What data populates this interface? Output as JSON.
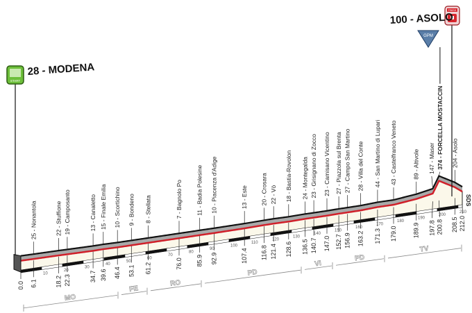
{
  "chart_data": {
    "type": "area",
    "title": "",
    "xlabel": "",
    "ylabel": "",
    "start": {
      "label": "28 - MODENA",
      "icon_text": "START"
    },
    "finish": {
      "label": "100 - ASOLO",
      "icon_text": "FINISH"
    },
    "gpm": {
      "label": "GPM"
    },
    "sds_label": "SDS",
    "x_unit": "km",
    "xlim": [
      0,
      212
    ],
    "km_ticks": [
      10,
      20,
      30,
      40,
      50,
      60,
      70,
      80,
      90,
      100,
      110,
      120,
      130,
      140,
      150,
      160,
      170,
      180,
      190,
      200,
      210
    ],
    "points": [
      {
        "km": "0.0",
        "alt": 28,
        "name": ""
      },
      {
        "km": "6.1",
        "alt": 25,
        "name": "25 - Nonantola"
      },
      {
        "km": "18.2",
        "alt": 22,
        "name": "22 - Stuffione"
      },
      {
        "km": "22.3",
        "alt": 19,
        "name": "19 - Camposanto"
      },
      {
        "km": "34.7",
        "alt": 13,
        "name": "13 - Canaletto"
      },
      {
        "km": "39.6",
        "alt": 15,
        "name": "15 - Finale Emilia"
      },
      {
        "km": "46.4",
        "alt": 10,
        "name": "10 - Scortichino"
      },
      {
        "km": "53.1",
        "alt": 9,
        "name": "9 - Bondeno"
      },
      {
        "km": "61.2",
        "alt": 8,
        "name": "8 - Stellata"
      },
      {
        "km": "76.0",
        "alt": 7,
        "name": "7 - Bagnolo Po"
      },
      {
        "km": "85.9",
        "alt": 11,
        "name": "11 - Badia Polesine"
      },
      {
        "km": "92.9",
        "alt": 10,
        "name": "10 - Piacenza d'Adige"
      },
      {
        "km": "107.4",
        "alt": 13,
        "name": "13 - Este"
      },
      {
        "km": "116.8",
        "alt": 20,
        "name": "20 - Crosara"
      },
      {
        "km": "121.4",
        "alt": 22,
        "name": "22 - Vò"
      },
      {
        "km": "128.6",
        "alt": 18,
        "name": "18 - Bastia-Rovolon"
      },
      {
        "km": "136.5",
        "alt": 24,
        "name": "24 - Montegalda"
      },
      {
        "km": "140.7",
        "alt": 23,
        "name": "23 - Grisignano di Zocco"
      },
      {
        "km": "147.0",
        "alt": 23,
        "name": "23 - Camisano Vicentino"
      },
      {
        "km": "152.7",
        "alt": 27,
        "name": "27 - Piazzola sul Brenta"
      },
      {
        "km": "156.9",
        "alt": 27,
        "name": "27 - Campo San Martino"
      },
      {
        "km": "163.2",
        "alt": 28,
        "name": "28 - Villa del Conte"
      },
      {
        "km": "171.3",
        "alt": 44,
        "name": "44 - San Martino di Lupari"
      },
      {
        "km": "179.0",
        "alt": 43,
        "name": "43 - Castelfranco Veneto"
      },
      {
        "km": "189.9",
        "alt": 89,
        "name": "89 - Altivole"
      },
      {
        "km": "197.8",
        "alt": 147,
        "name": "147 - Maser"
      },
      {
        "km": "200.8",
        "alt": 374,
        "name": "374 - FORCELLA MOSTACCIN"
      },
      {
        "km": "208.5",
        "alt": 204,
        "name": "204 - Asolo"
      },
      {
        "km": "212.0",
        "alt": 100,
        "name": ""
      }
    ],
    "provinces": [
      {
        "code": "MO",
        "from": 0,
        "to": 47
      },
      {
        "code": "FE",
        "from": 47,
        "to": 61
      },
      {
        "code": "RO",
        "from": 61,
        "to": 87
      },
      {
        "code": "PD",
        "from": 87,
        "to": 135
      },
      {
        "code": "VI",
        "from": 135,
        "to": 150
      },
      {
        "code": "PD",
        "from": 150,
        "to": 175
      },
      {
        "code": "TV",
        "from": 175,
        "to": 212
      }
    ],
    "colors": {
      "road": "#d0202a",
      "profile": "#a9a9a9",
      "face": "#fbf8ea",
      "start": "#6dbf3a",
      "finish": "#d7262e",
      "gpm": "#5a7ea8"
    }
  }
}
